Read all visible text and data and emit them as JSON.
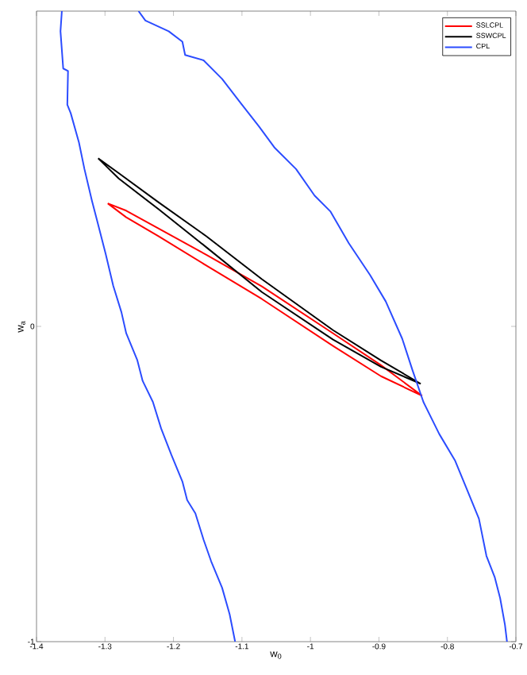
{
  "chart_data": {
    "type": "line",
    "xlabel": "w$_{0}$",
    "ylabel": "w$_{a}$",
    "xlim": [
      -1.4,
      -0.7
    ],
    "ylim": [
      -1,
      1
    ],
    "xticks": [
      -1.4,
      -1.3,
      -1.2,
      -1.1,
      -1,
      -0.9,
      -0.8,
      -0.7
    ],
    "yticks": [
      -1,
      0
    ],
    "legend": "top right",
    "marker": "none",
    "line_style": "solid",
    "grid": false,
    "series": [
      {
        "name": "SSLCPL",
        "color": "#ff0000",
        "x": [
          -1.296,
          -1.269,
          -1.222,
          -1.152,
          -1.071,
          -0.967,
          -0.897,
          -0.837,
          null,
          -0.837,
          -0.897,
          -0.967,
          -1.071,
          -1.152,
          -1.222,
          -1.269,
          -1.296
        ],
        "values": [
          0.39,
          0.367,
          0.311,
          0.227,
          0.127,
          -0.022,
          -0.123,
          -0.22,
          null,
          -0.22,
          -0.158,
          -0.062,
          0.087,
          0.193,
          0.286,
          0.346,
          0.39
        ]
      },
      {
        "name": "SSWCPL",
        "color": "#000000",
        "x": [
          -1.31,
          -1.28,
          -1.222,
          -1.152,
          -1.071,
          -0.967,
          -0.897,
          -0.839,
          null,
          -0.839,
          -0.897,
          -0.967,
          -1.071,
          -1.152,
          -1.222,
          -1.28,
          -1.31
        ],
        "values": [
          0.533,
          0.486,
          0.394,
          0.286,
          0.15,
          -0.012,
          -0.108,
          -0.182,
          null,
          -0.182,
          -0.128,
          -0.042,
          0.109,
          0.251,
          0.372,
          0.469,
          0.533
        ]
      },
      {
        "name": "CPL",
        "color": "#2b4cff",
        "x": [
          -1.363,
          -1.365,
          -1.361,
          -1.354,
          -1.355,
          -1.35,
          -1.338,
          -1.33,
          -1.319,
          -1.311,
          -1.299,
          -1.288,
          -1.276,
          -1.269,
          -1.253,
          -1.245,
          -1.23,
          -1.218,
          -1.203,
          -1.187,
          -1.18,
          -1.168,
          -1.156,
          -1.145,
          -1.129,
          -1.118,
          -1.11,
          null,
          -1.251,
          -1.241,
          -1.207,
          -1.187,
          -1.183,
          -1.156,
          -1.129,
          -1.102,
          -1.075,
          -1.052,
          -1.021,
          -0.994,
          -0.971,
          -0.944,
          -0.913,
          -0.89,
          -0.866,
          -0.851,
          -0.835,
          -0.812,
          -0.789,
          -0.773,
          -0.754,
          -0.743,
          -0.731,
          -0.723,
          -0.716,
          -0.713
        ],
        "values": [
          1.0,
          0.936,
          0.818,
          0.81,
          0.703,
          0.676,
          0.583,
          0.499,
          0.398,
          0.331,
          0.23,
          0.129,
          0.045,
          -0.022,
          -0.106,
          -0.173,
          -0.24,
          -0.324,
          -0.408,
          -0.492,
          -0.551,
          -0.593,
          -0.677,
          -0.745,
          -0.829,
          -0.913,
          -1.0,
          null,
          1.0,
          0.97,
          0.936,
          0.903,
          0.861,
          0.844,
          0.785,
          0.709,
          0.634,
          0.566,
          0.499,
          0.415,
          0.365,
          0.264,
          0.163,
          0.079,
          -0.039,
          -0.139,
          -0.24,
          -0.341,
          -0.425,
          -0.509,
          -0.61,
          -0.728,
          -0.795,
          -0.862,
          -0.946,
          -1.0
        ]
      }
    ]
  }
}
